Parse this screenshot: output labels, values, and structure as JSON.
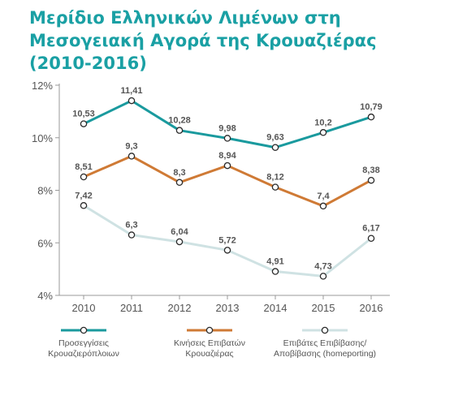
{
  "title": "Μερίδιο Ελληνικών Λιμένων στη Μεσογειακή Αγορά της Κρουαζιέρας (2010-2016)",
  "chart_data": {
    "type": "line",
    "title": "Μερίδιο Ελληνικών Λιμένων στη Μεσογειακή Αγορά της Κρουαζιέρας (2010-2016)",
    "x": [
      "2010",
      "2011",
      "2012",
      "2013",
      "2014",
      "2015",
      "2016"
    ],
    "ylim": [
      4,
      12
    ],
    "yticks": [
      4,
      6,
      8,
      10,
      12
    ],
    "ytick_labels": [
      "4%",
      "6%",
      "8%",
      "10%",
      "12%"
    ],
    "grid": false,
    "legend": "bottom",
    "series": [
      {
        "name": "Προσεγγίσεις Κρουαζιερόπλοιων",
        "legend_lines": [
          "Προσεγγίσεις",
          "Κρουαζιερόπλοιων"
        ],
        "color": "#1a9a9e",
        "values": [
          10.53,
          11.41,
          10.28,
          9.98,
          9.63,
          10.2,
          10.79
        ],
        "labels": [
          "10,53",
          "11,41",
          "10,28",
          "9,98",
          "9,63",
          "10,2",
          "10,79"
        ]
      },
      {
        "name": "Κινήσεις Επιβατών Κρουαζιέρας",
        "legend_lines": [
          "Κινήσεις Επιβατών",
          "Κρουαζιέρας"
        ],
        "color": "#cf7a35",
        "values": [
          8.51,
          9.3,
          8.3,
          8.94,
          8.12,
          7.4,
          8.38
        ],
        "labels": [
          "8,51",
          "9,3",
          "8,3",
          "8,94",
          "8,12",
          "7,4",
          "8,38"
        ]
      },
      {
        "name": "Επιβάτες Επιβίβασης/ Αποβίβασης (homeporting)",
        "legend_lines": [
          "Επιβάτες Επιβίβασης/",
          "Αποβίβασης (homeporting)"
        ],
        "color": "#cfe2e3",
        "values": [
          7.42,
          6.3,
          6.04,
          5.72,
          4.91,
          4.73,
          6.17
        ],
        "labels": [
          "7,42",
          "6,3",
          "6,04",
          "5,72",
          "4,91",
          "4,73",
          "6,17"
        ]
      }
    ]
  }
}
